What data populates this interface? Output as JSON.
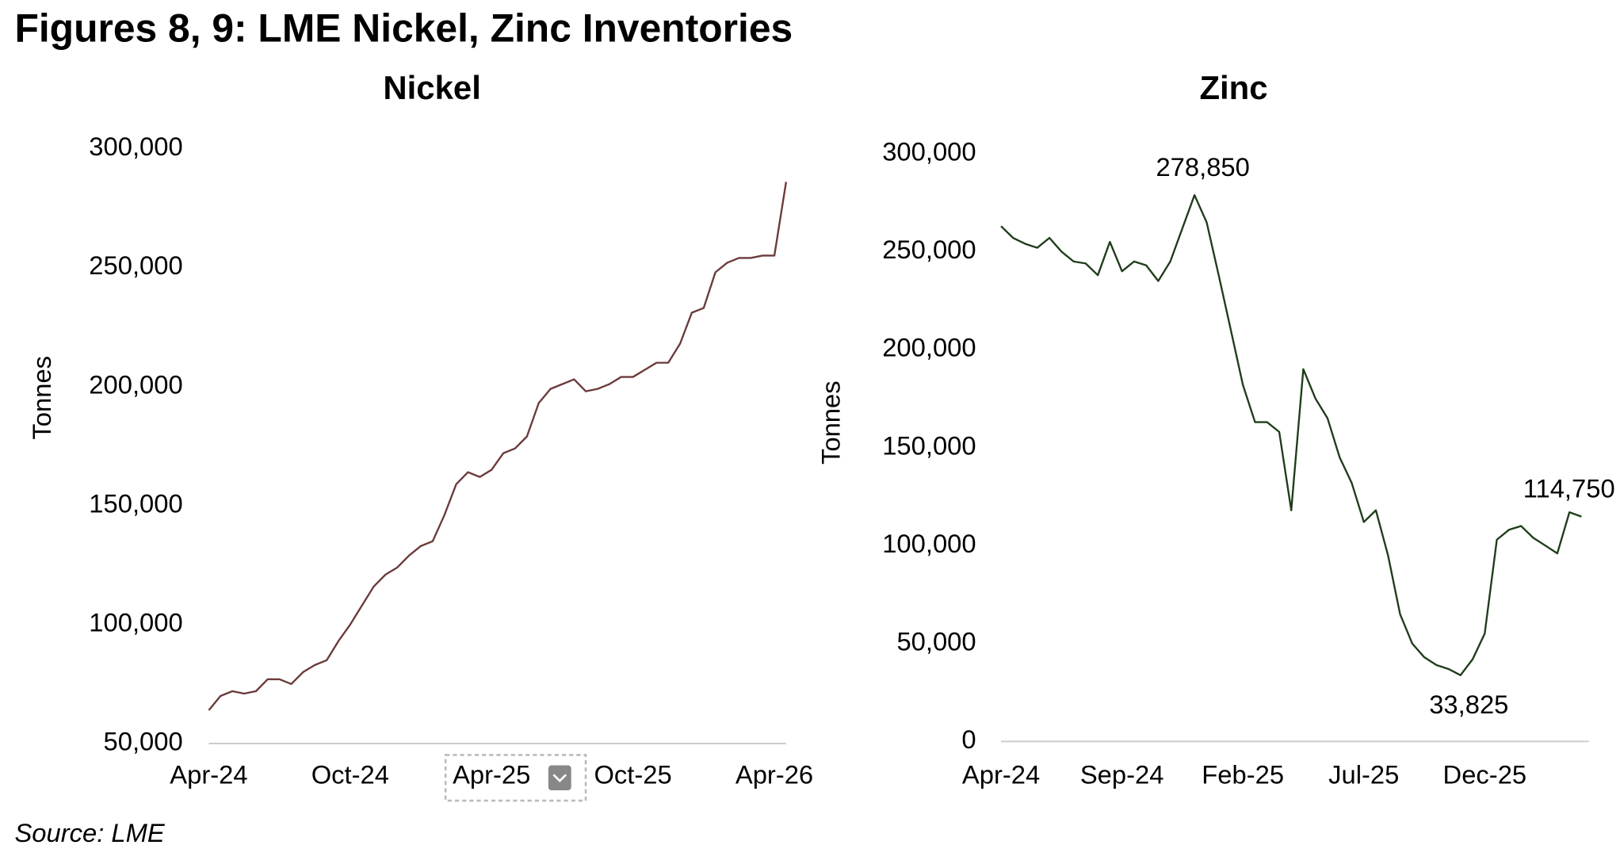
{
  "title": "Figures 8, 9: LME Nickel, Zinc Inventories",
  "source": "Source: LME",
  "chart_data": [
    {
      "type": "line",
      "title": "Nickel",
      "y_label": "Tonnes",
      "color": "#6b3a3a",
      "categories": [
        "Apr-24",
        null,
        null,
        null,
        null,
        null,
        null,
        null,
        null,
        null,
        null,
        null,
        "Oct-24",
        null,
        null,
        null,
        null,
        null,
        null,
        null,
        null,
        null,
        null,
        null,
        "Apr-25",
        null,
        null,
        null,
        null,
        null,
        null,
        null,
        null,
        null,
        null,
        null,
        "Oct-25",
        null,
        null,
        null,
        null,
        null,
        null,
        null,
        null,
        null,
        null,
        null,
        "Apr-26",
        null
      ],
      "values": [
        64000,
        70000,
        72000,
        71000,
        72000,
        77000,
        77000,
        75000,
        80000,
        83000,
        85000,
        93000,
        100000,
        108000,
        116000,
        121000,
        124000,
        129000,
        133000,
        135000,
        146000,
        159000,
        164000,
        162000,
        165000,
        172000,
        174000,
        179000,
        193000,
        199000,
        201000,
        203000,
        198000,
        199000,
        201000,
        204000,
        204000,
        207000,
        210000,
        210000,
        218000,
        231000,
        233000,
        248000,
        252000,
        254000,
        254000,
        255000,
        255000,
        286000
      ],
      "ylim": [
        50000,
        300000
      ],
      "yticks": [
        {
          "value": 50000,
          "label": "50,000"
        },
        {
          "value": 100000,
          "label": "100,000"
        },
        {
          "value": 150000,
          "label": "150,000"
        },
        {
          "value": 200000,
          "label": "200,000"
        },
        {
          "value": 250000,
          "label": "250,000"
        },
        {
          "value": 300000,
          "label": "300,000"
        }
      ]
    },
    {
      "type": "line",
      "title": "Zinc",
      "y_label": "Tonnes",
      "color": "#1f3d1a",
      "categories": [
        "Apr-24",
        null,
        null,
        null,
        null,
        null,
        null,
        null,
        null,
        null,
        "Sep-24",
        null,
        null,
        null,
        null,
        null,
        null,
        null,
        null,
        null,
        "Feb-25",
        null,
        null,
        null,
        null,
        null,
        null,
        null,
        null,
        null,
        "Jul-25",
        null,
        null,
        null,
        null,
        null,
        null,
        null,
        null,
        null,
        "Dec-25",
        null,
        null,
        null,
        null,
        null,
        null,
        null,
        null
      ],
      "values": [
        263000,
        257000,
        254000,
        252000,
        257000,
        250000,
        245000,
        244000,
        238000,
        255000,
        240000,
        245000,
        243000,
        235000,
        245000,
        262000,
        278850,
        265000,
        238000,
        210000,
        182000,
        163000,
        163000,
        158000,
        118000,
        190000,
        175000,
        165000,
        145000,
        132000,
        112000,
        118000,
        95000,
        65000,
        50000,
        43000,
        39000,
        37000,
        33825,
        42000,
        55000,
        103000,
        108000,
        110000,
        104000,
        100000,
        96000,
        117000,
        114750
      ],
      "value_labels": [
        null,
        null,
        null,
        null,
        null,
        null,
        null,
        null,
        null,
        null,
        null,
        null,
        null,
        null,
        null,
        null,
        "278,850",
        null,
        null,
        null,
        null,
        null,
        null,
        null,
        null,
        null,
        null,
        null,
        null,
        null,
        null,
        null,
        null,
        null,
        null,
        null,
        null,
        null,
        "33,825",
        null,
        null,
        null,
        null,
        null,
        null,
        null,
        null,
        null,
        "114,750"
      ],
      "ylim": [
        0,
        300000
      ],
      "yticks": [
        0,
        {
          "value": 50000,
          "label": "50,000"
        },
        {
          "value": 100000,
          "label": "100,000"
        },
        {
          "value": 150000,
          "label": "150,000"
        },
        {
          "value": 200000,
          "label": "200,000"
        },
        {
          "value": 250000,
          "label": "250,000"
        },
        {
          "value": 300000,
          "label": "300,000"
        }
      ]
    }
  ]
}
